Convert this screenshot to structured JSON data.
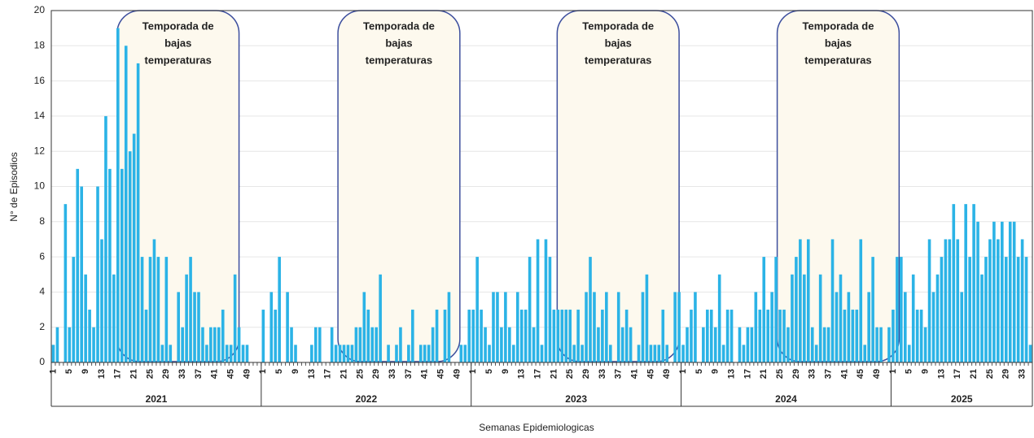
{
  "chart_data": {
    "type": "bar",
    "color": "#2bb3e6",
    "grid": true,
    "x_label": "Semanas Epidemiologicas",
    "y_label": "N° de Episodios",
    "ylim": [
      0,
      20
    ],
    "yticks": [
      0,
      2,
      4,
      6,
      8,
      10,
      12,
      14,
      16,
      18,
      20
    ],
    "groups": [
      {
        "label": "2021",
        "categories": [
          "1",
          null,
          null,
          null,
          "5",
          null,
          null,
          null,
          "9",
          null,
          null,
          null,
          "13",
          null,
          null,
          null,
          "17",
          null,
          null,
          null,
          "21",
          null,
          null,
          null,
          "25",
          null,
          null,
          null,
          "29",
          null,
          null,
          null,
          "33",
          null,
          null,
          null,
          "37",
          null,
          null,
          null,
          "41",
          null,
          null,
          null,
          "45",
          null,
          null,
          null,
          "49",
          null,
          null,
          null
        ],
        "values": [
          1,
          2,
          0,
          9,
          2,
          6,
          11,
          10,
          5,
          3,
          2,
          10,
          7,
          14,
          11,
          5,
          19,
          11,
          18,
          12,
          13,
          17,
          6,
          3,
          6,
          7,
          6,
          1,
          6,
          1,
          0,
          4,
          2,
          5,
          6,
          4,
          4,
          2,
          1,
          2,
          2,
          2,
          3,
          1,
          1,
          5,
          2,
          1,
          1,
          0,
          0,
          0
        ]
      },
      {
        "label": "2022",
        "categories": [
          "1",
          null,
          null,
          null,
          "5",
          null,
          null,
          null,
          "9",
          null,
          null,
          null,
          "13",
          null,
          null,
          null,
          "17",
          null,
          null,
          null,
          "21",
          null,
          null,
          null,
          "25",
          null,
          null,
          null,
          "29",
          null,
          null,
          null,
          "33",
          null,
          null,
          null,
          "37",
          null,
          null,
          null,
          "41",
          null,
          null,
          null,
          "45",
          null,
          null,
          null,
          "49",
          null,
          null,
          null
        ],
        "values": [
          3,
          0,
          4,
          3,
          6,
          0,
          4,
          2,
          1,
          0,
          0,
          0,
          1,
          2,
          2,
          0,
          0,
          2,
          1,
          1,
          1,
          1,
          1,
          2,
          2,
          4,
          3,
          2,
          2,
          5,
          0,
          1,
          0,
          1,
          2,
          0,
          1,
          3,
          0,
          1,
          1,
          1,
          2,
          3,
          0,
          3,
          4,
          0,
          0,
          1,
          1,
          3
        ]
      },
      {
        "label": "2023",
        "categories": [
          "1",
          null,
          null,
          null,
          "5",
          null,
          null,
          null,
          "9",
          null,
          null,
          null,
          "13",
          null,
          null,
          null,
          "17",
          null,
          null,
          null,
          "21",
          null,
          null,
          null,
          "25",
          null,
          null,
          null,
          "29",
          null,
          null,
          null,
          "33",
          null,
          null,
          null,
          "37",
          null,
          null,
          null,
          "41",
          null,
          null,
          null,
          "45",
          null,
          null,
          null,
          "49",
          null,
          null,
          null
        ],
        "values": [
          3,
          6,
          3,
          2,
          1,
          4,
          4,
          2,
          4,
          2,
          1,
          4,
          3,
          3,
          6,
          2,
          7,
          1,
          7,
          6,
          3,
          3,
          3,
          3,
          3,
          1,
          3,
          1,
          4,
          6,
          4,
          2,
          3,
          4,
          1,
          0,
          4,
          2,
          3,
          2,
          0,
          1,
          4,
          5,
          1,
          1,
          1,
          3,
          1,
          0,
          4,
          4
        ]
      },
      {
        "label": "2024",
        "categories": [
          "1",
          null,
          null,
          null,
          "5",
          null,
          null,
          null,
          "9",
          null,
          null,
          null,
          "13",
          null,
          null,
          null,
          "17",
          null,
          null,
          null,
          "21",
          null,
          null,
          null,
          "25",
          null,
          null,
          null,
          "29",
          null,
          null,
          null,
          "33",
          null,
          null,
          null,
          "37",
          null,
          null,
          null,
          "41",
          null,
          null,
          null,
          "45",
          null,
          null,
          null,
          "49",
          null,
          null,
          null
        ],
        "values": [
          1,
          2,
          3,
          4,
          0,
          2,
          3,
          3,
          2,
          5,
          1,
          3,
          3,
          0,
          2,
          1,
          2,
          2,
          4,
          3,
          6,
          3,
          4,
          6,
          3,
          3,
          2,
          5,
          6,
          7,
          5,
          7,
          2,
          1,
          5,
          2,
          2,
          7,
          4,
          5,
          3,
          4,
          3,
          3,
          7,
          1,
          4,
          6,
          2,
          2,
          0,
          2
        ]
      },
      {
        "label": "2025",
        "categories": [
          "1",
          null,
          null,
          null,
          "5",
          null,
          null,
          null,
          "9",
          null,
          null,
          null,
          "13",
          null,
          null,
          null,
          "17",
          null,
          null,
          null,
          "21",
          null,
          null,
          null,
          "25",
          null,
          null,
          null,
          "29",
          null,
          null,
          null,
          "33",
          null,
          null
        ],
        "values": [
          3,
          6,
          6,
          4,
          1,
          5,
          3,
          3,
          2,
          7,
          4,
          5,
          6,
          7,
          7,
          9,
          7,
          4,
          9,
          6,
          9,
          8,
          5,
          6,
          7,
          8,
          7,
          8,
          6,
          8,
          8,
          6,
          7,
          6,
          1
        ]
      }
    ],
    "annotations": [
      {
        "lines": [
          "Temporada de",
          "bajas",
          "temperaturas"
        ]
      },
      {
        "lines": [
          "Temporada de",
          "bajas",
          "temperaturas"
        ]
      },
      {
        "lines": [
          "Temporada de",
          "bajas",
          "temperaturas"
        ]
      },
      {
        "lines": [
          "Temporada de",
          "bajas",
          "temperaturas"
        ]
      }
    ]
  }
}
